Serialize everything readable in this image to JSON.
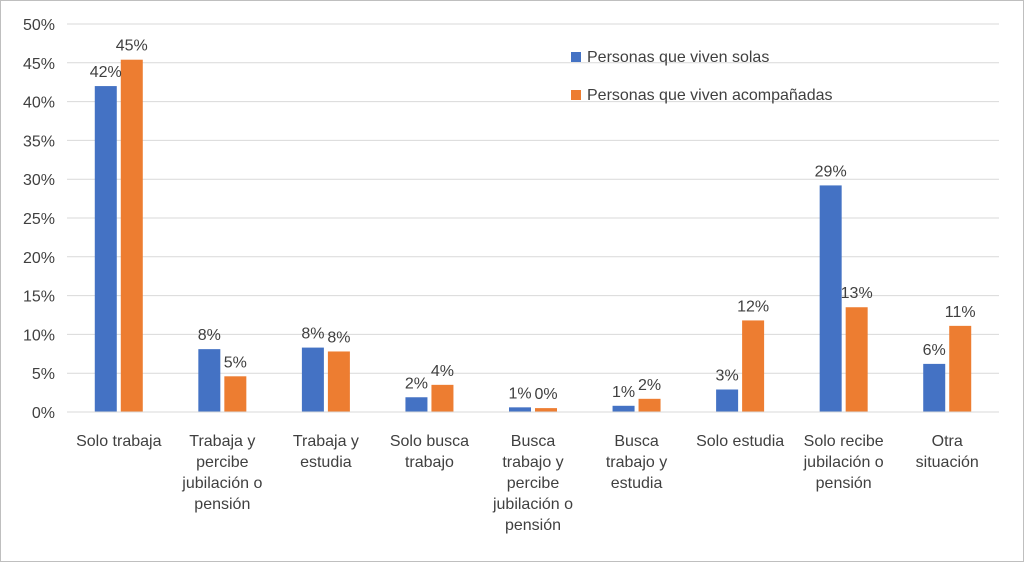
{
  "chart_data": {
    "type": "bar",
    "title": "",
    "xlabel": "",
    "ylabel": "",
    "ylim": [
      0,
      50
    ],
    "y_tick_step": 5,
    "y_tick_format": "percent",
    "grid": "horizontal",
    "legend_position": "top-right",
    "categories": [
      [
        "Solo trabaja"
      ],
      [
        "Trabaja y",
        "percibe",
        "jubilación o",
        "pensión"
      ],
      [
        "Trabaja y",
        "estudia"
      ],
      [
        "Solo busca",
        "trabajo"
      ],
      [
        "Busca",
        "trabajo y",
        "percibe",
        "jubilación o",
        "pensión"
      ],
      [
        "Busca",
        "trabajo y",
        "estudia"
      ],
      [
        "Solo estudia"
      ],
      [
        "Solo recibe",
        "jubilación o",
        "pensión"
      ],
      [
        "Otra",
        "situación"
      ]
    ],
    "series": [
      {
        "name": "Personas que viven solas",
        "color": "#4472c4",
        "values": [
          42,
          8.1,
          8.3,
          1.9,
          0.6,
          0.8,
          2.9,
          29.2,
          6.2
        ],
        "labels": [
          "42%",
          "8%",
          "8%",
          "2%",
          "1%",
          "1%",
          "3%",
          "29%",
          "6%"
        ]
      },
      {
        "name": "Personas que viven acompañadas",
        "color": "#ed7d31",
        "values": [
          45.4,
          4.6,
          7.8,
          3.5,
          0.5,
          1.7,
          11.8,
          13.5,
          11.1
        ],
        "labels": [
          "45%",
          "5%",
          "8%",
          "4%",
          "0%",
          "2%",
          "12%",
          "13%",
          "11%"
        ]
      }
    ]
  }
}
